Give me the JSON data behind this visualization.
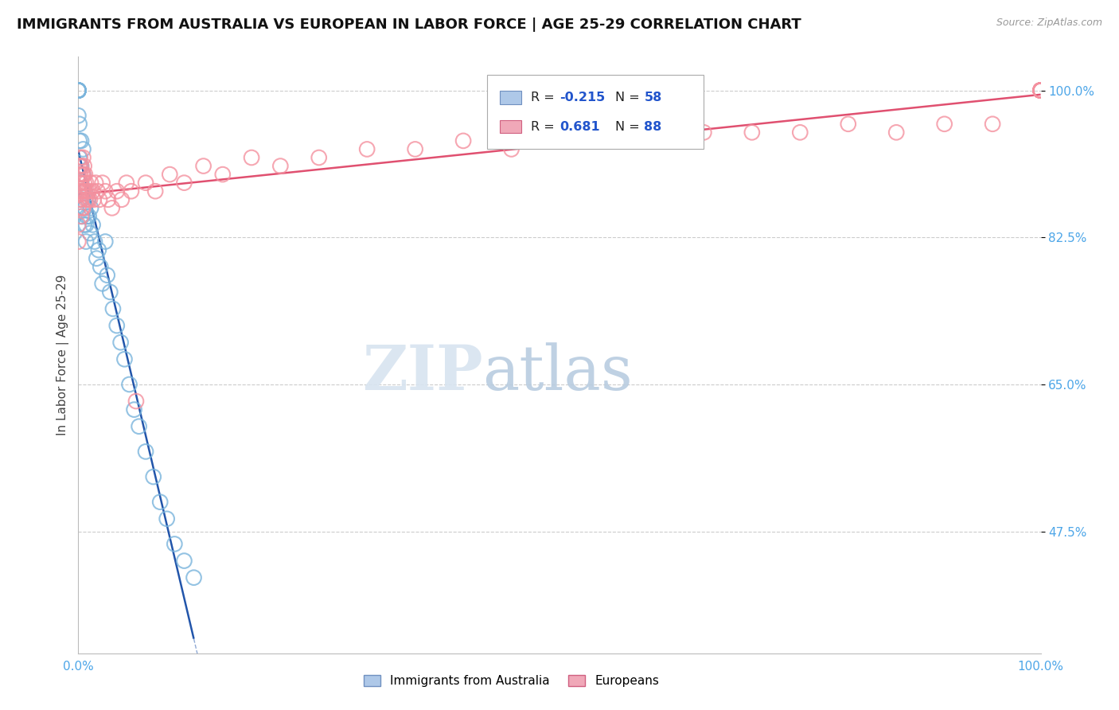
{
  "title": "IMMIGRANTS FROM AUSTRALIA VS EUROPEAN IN LABOR FORCE | AGE 25-29 CORRELATION CHART",
  "source": "Source: ZipAtlas.com",
  "ylabel": "In Labor Force | Age 25-29",
  "xlim": [
    0.0,
    1.0
  ],
  "ylim_min": 0.33,
  "ylim_max": 1.04,
  "yticks": [
    0.475,
    0.65,
    0.825,
    1.0
  ],
  "ytick_labels": [
    "47.5%",
    "65.0%",
    "82.5%",
    "100.0%"
  ],
  "xtick_labels": [
    "0.0%",
    "",
    "100.0%"
  ],
  "australia_R": -0.215,
  "australia_N": 58,
  "european_R": 0.681,
  "european_N": 88,
  "australia_color": "#7ab4dc",
  "european_color": "#f4919f",
  "australia_line_color": "#2255aa",
  "european_line_color": "#e05070",
  "australia_x": [
    0.0,
    0.0,
    0.0,
    0.0,
    0.0,
    0.0,
    0.0,
    0.0,
    0.0,
    0.0,
    0.001,
    0.001,
    0.001,
    0.002,
    0.002,
    0.002,
    0.003,
    0.003,
    0.003,
    0.004,
    0.004,
    0.005,
    0.005,
    0.005,
    0.006,
    0.006,
    0.007,
    0.007,
    0.008,
    0.008,
    0.009,
    0.01,
    0.011,
    0.012,
    0.013,
    0.015,
    0.017,
    0.019,
    0.021,
    0.023,
    0.025,
    0.028,
    0.03,
    0.033,
    0.036,
    0.04,
    0.044,
    0.048,
    0.053,
    0.058,
    0.063,
    0.07,
    0.078,
    0.085,
    0.092,
    0.1,
    0.11,
    0.12
  ],
  "australia_y": [
    1.0,
    1.0,
    1.0,
    1.0,
    1.0,
    1.0,
    1.0,
    1.0,
    1.0,
    0.97,
    0.96,
    0.94,
    0.92,
    0.91,
    0.89,
    0.87,
    0.94,
    0.91,
    0.89,
    0.87,
    0.85,
    0.93,
    0.9,
    0.88,
    0.86,
    0.84,
    0.88,
    0.86,
    0.84,
    0.82,
    0.85,
    0.87,
    0.85,
    0.83,
    0.86,
    0.84,
    0.82,
    0.8,
    0.81,
    0.79,
    0.77,
    0.82,
    0.78,
    0.76,
    0.74,
    0.72,
    0.7,
    0.68,
    0.65,
    0.62,
    0.6,
    0.57,
    0.54,
    0.51,
    0.49,
    0.46,
    0.44,
    0.42
  ],
  "european_x": [
    0.0,
    0.0,
    0.0,
    0.0,
    0.0,
    0.001,
    0.001,
    0.001,
    0.002,
    0.002,
    0.002,
    0.003,
    0.003,
    0.003,
    0.003,
    0.004,
    0.004,
    0.004,
    0.005,
    0.005,
    0.005,
    0.005,
    0.006,
    0.006,
    0.007,
    0.007,
    0.008,
    0.008,
    0.009,
    0.01,
    0.011,
    0.012,
    0.013,
    0.015,
    0.016,
    0.018,
    0.02,
    0.022,
    0.025,
    0.028,
    0.031,
    0.035,
    0.04,
    0.045,
    0.05,
    0.055,
    0.06,
    0.07,
    0.08,
    0.095,
    0.11,
    0.13,
    0.15,
    0.18,
    0.21,
    0.25,
    0.3,
    0.35,
    0.4,
    0.45,
    0.5,
    0.55,
    0.6,
    0.65,
    0.7,
    0.75,
    0.8,
    0.85,
    0.9,
    0.95,
    1.0,
    1.0,
    1.0,
    1.0,
    1.0,
    1.0,
    1.0,
    1.0,
    1.0,
    1.0,
    1.0,
    1.0,
    1.0,
    1.0,
    1.0,
    1.0,
    1.0,
    1.0
  ],
  "european_y": [
    0.9,
    0.88,
    0.86,
    0.84,
    0.82,
    0.91,
    0.89,
    0.87,
    0.92,
    0.9,
    0.88,
    0.91,
    0.89,
    0.87,
    0.85,
    0.9,
    0.88,
    0.86,
    0.92,
    0.9,
    0.88,
    0.86,
    0.91,
    0.89,
    0.9,
    0.88,
    0.89,
    0.87,
    0.88,
    0.87,
    0.88,
    0.87,
    0.89,
    0.88,
    0.87,
    0.89,
    0.88,
    0.87,
    0.89,
    0.88,
    0.87,
    0.86,
    0.88,
    0.87,
    0.89,
    0.88,
    0.63,
    0.89,
    0.88,
    0.9,
    0.89,
    0.91,
    0.9,
    0.92,
    0.91,
    0.92,
    0.93,
    0.93,
    0.94,
    0.93,
    0.94,
    0.94,
    0.94,
    0.95,
    0.95,
    0.95,
    0.96,
    0.95,
    0.96,
    0.96,
    1.0,
    1.0,
    1.0,
    1.0,
    1.0,
    1.0,
    1.0,
    1.0,
    1.0,
    1.0,
    1.0,
    1.0,
    1.0,
    1.0,
    1.0,
    1.0,
    1.0,
    1.0
  ]
}
